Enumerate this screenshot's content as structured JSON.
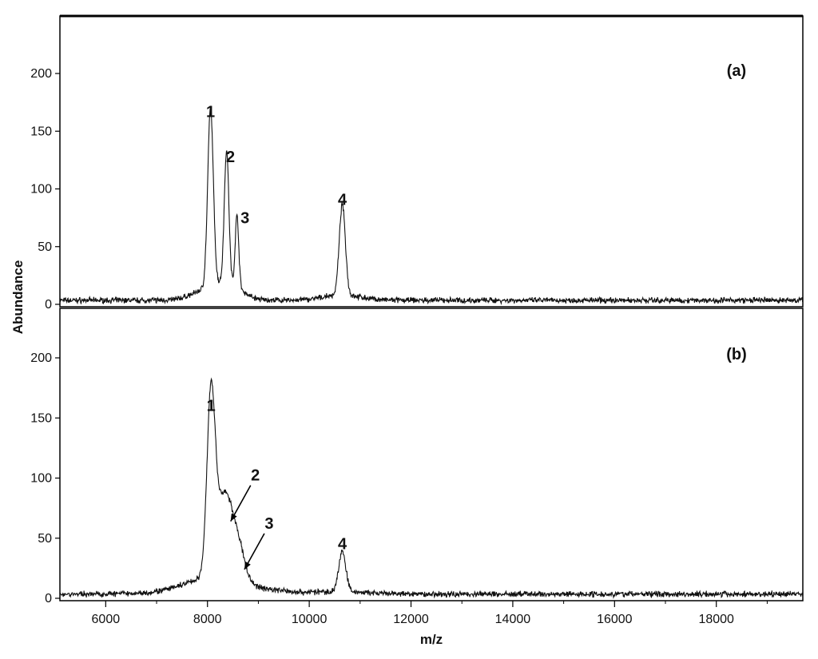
{
  "chart_data": {
    "type": "line",
    "xlabel": "m/z",
    "ylabel": "Abundance",
    "xlim": [
      5100,
      19700
    ],
    "x_ticks": [
      6000,
      8000,
      10000,
      12000,
      14000,
      16000,
      18000
    ],
    "ylim": [
      0,
      250
    ],
    "y_ticks": [
      0,
      50,
      100,
      150,
      200
    ],
    "grid": false,
    "panels": [
      {
        "panel_label": "(a)",
        "peaks": [
          {
            "label": "1",
            "x": 8060,
            "y": 154,
            "width": 55
          },
          {
            "label": "2",
            "x": 8375,
            "y": 115,
            "width": 45
          },
          {
            "label": "3",
            "x": 8580,
            "y": 62,
            "width": 35
          },
          {
            "label": "4",
            "x": 10650,
            "y": 78,
            "width": 60
          }
        ]
      },
      {
        "panel_label": "(b)",
        "peaks": [
          {
            "label": "1",
            "x": 8070,
            "y": 148,
            "width": 80
          },
          {
            "label": "2",
            "x": 8330,
            "y": 68,
            "width": 150
          },
          {
            "label": "3",
            "x": 8600,
            "y": 28,
            "width": 130
          },
          {
            "label": "4",
            "x": 10650,
            "y": 33,
            "width": 70
          }
        ]
      }
    ]
  }
}
